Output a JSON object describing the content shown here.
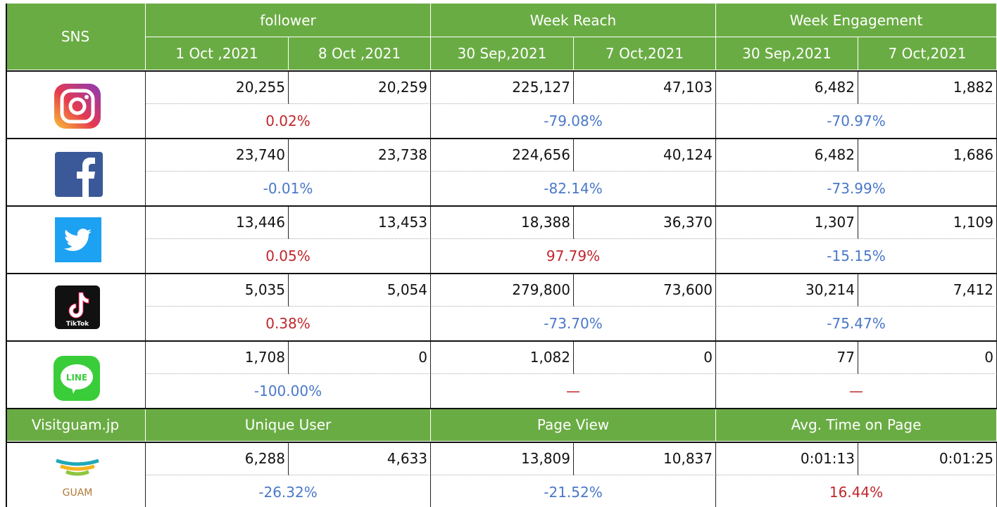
{
  "header": {
    "sns": "SNS",
    "groups": [
      "follower",
      "Week Reach",
      "Week Engagement"
    ],
    "dates": [
      "1 Oct ,2021",
      "8 Oct ,2021",
      "30 Sep,2021",
      "7 Oct,2021",
      "30 Sep,2021",
      "7 Oct,2021"
    ]
  },
  "rows": [
    {
      "values": [
        "20,255",
        "20,259",
        "225,127",
        "47,103",
        "6,482",
        "1,882"
      ],
      "changes": [
        {
          "text": "0.02%",
          "color": "#c0272d"
        },
        {
          "text": "-79.08%",
          "color": "#4a78c8"
        },
        {
          "text": "-70.97%",
          "color": "#4a78c8"
        }
      ]
    },
    {
      "values": [
        "23,740",
        "23,738",
        "224,656",
        "40,124",
        "6,482",
        "1,686"
      ],
      "changes": [
        {
          "text": "-0.01%",
          "color": "#4a78c8"
        },
        {
          "text": "-82.14%",
          "color": "#4a78c8"
        },
        {
          "text": "-73.99%",
          "color": "#4a78c8"
        }
      ]
    },
    {
      "values": [
        "13,446",
        "13,453",
        "18,388",
        "36,370",
        "1,307",
        "1,109"
      ],
      "changes": [
        {
          "text": "0.05%",
          "color": "#c0272d"
        },
        {
          "text": "97.79%",
          "color": "#c0272d"
        },
        {
          "text": "-15.15%",
          "color": "#4a78c8"
        }
      ]
    },
    {
      "values": [
        "5,035",
        "5,054",
        "279,800",
        "73,600",
        "30,214",
        "7,412"
      ],
      "changes": [
        {
          "text": "0.38%",
          "color": "#c0272d"
        },
        {
          "text": "-73.70%",
          "color": "#4a78c8"
        },
        {
          "text": "-75.47%",
          "color": "#4a78c8"
        }
      ]
    },
    {
      "values": [
        "1,708",
        "0",
        "1,082",
        "0",
        "77",
        "0"
      ],
      "changes": [
        {
          "text": "-100.00%",
          "color": "#4a78c8"
        },
        {
          "text": "—",
          "color": "#c0272d"
        },
        {
          "text": "—",
          "color": "#c0272d"
        }
      ]
    }
  ],
  "web": {
    "title": "Visitguam.jp",
    "groups": [
      "Unique User",
      "Page View",
      "Avg. Time on Page"
    ],
    "logo": "GUAM",
    "values": [
      "6,288",
      "4,633",
      "13,809",
      "10,837",
      "0:01:13",
      "0:01:25"
    ],
    "changes": [
      {
        "text": "-26.32%",
        "color": "#4a78c8"
      },
      {
        "text": "-21.52%",
        "color": "#4a78c8"
      },
      {
        "text": "16.44%",
        "color": "#c0272d"
      }
    ]
  }
}
